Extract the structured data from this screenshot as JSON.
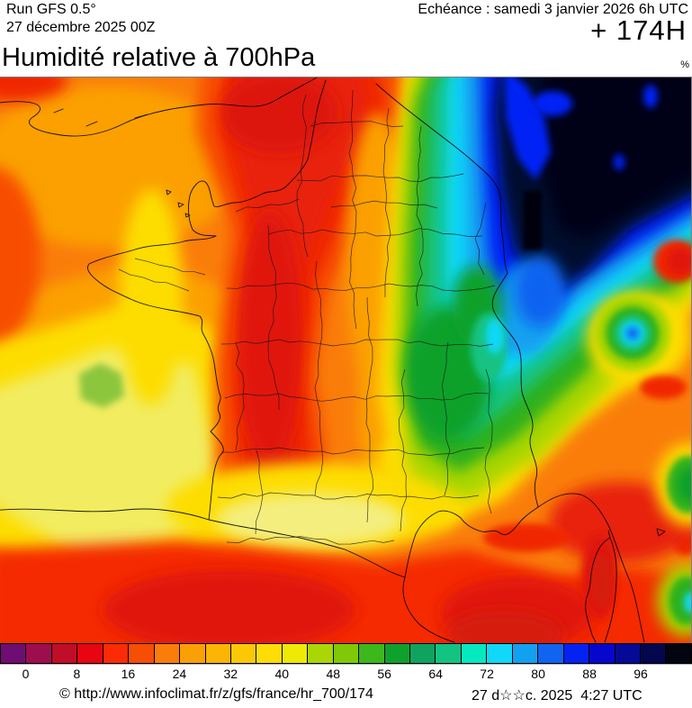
{
  "header": {
    "run_model": "Run GFS 0.5°",
    "run_date": "27 décembre 2025 00Z",
    "valid_label": "Echéance : samedi 3 janvier 2026 6h UTC",
    "forecast_offset": "+ 174H"
  },
  "title": {
    "text": "Humidité relative à 700hPa",
    "unit": "%"
  },
  "scale": {
    "tick_labels": [
      "0",
      "8",
      "16",
      "24",
      "32",
      "40",
      "48",
      "56",
      "64",
      "72",
      "80",
      "88",
      "96"
    ],
    "colors": [
      "#6E0D72",
      "#9C0E4E",
      "#C00D28",
      "#E60511",
      "#FB2C05",
      "#F74E06",
      "#FA7D0A",
      "#FBA004",
      "#FCB405",
      "#FCC805",
      "#FDDD05",
      "#EFE906",
      "#AAD606",
      "#7FC908",
      "#3DB81C",
      "#0EA12C",
      "#0FA35F",
      "#12C382",
      "#06E8C0",
      "#10D8F8",
      "#14A0F0",
      "#1064F0",
      "#0522F5",
      "#0508CC",
      "#050A96",
      "#03074E",
      "#02040F"
    ]
  },
  "footer": {
    "copyright": "© http://www.infoclimat.fr/z/gfs/france/hr_700/174",
    "datetime": "27 d☆☆c. 2025  4:27 UTC"
  },
  "chart_data": {
    "type": "heatmap",
    "title": "Humidité relative à 700hPa",
    "unit": "%",
    "legend_min": 0,
    "legend_max": 100,
    "legend_step_per_band": 4,
    "legend_tick_values": [
      0,
      8,
      16,
      24,
      32,
      40,
      48,
      56,
      64,
      72,
      80,
      88,
      96
    ],
    "legend_position": "bottom",
    "palette": [
      "#6E0D72",
      "#9C0E4E",
      "#C00D28",
      "#E60511",
      "#FB2C05",
      "#F74E06",
      "#FA7D0A",
      "#FBA004",
      "#FCB405",
      "#FCC805",
      "#FDDD05",
      "#EFE906",
      "#AAD606",
      "#7FC908",
      "#3DB81C",
      "#0EA12C",
      "#0FA35F",
      "#12C382",
      "#06E8C0",
      "#10D8F8",
      "#14A0F0",
      "#1064F0",
      "#0522F5",
      "#0508CC",
      "#050A96",
      "#03074E",
      "#02040F"
    ],
    "regions_summary": [
      {
        "area": "western and central France",
        "value_pct": "8-24 (very dry, red)"
      },
      {
        "area": "north-east corner (Germany/Benelux)",
        "value_pct": "96-100 (saturated, dark navy)"
      },
      {
        "area": "Alsace-Lorraine / Jura band",
        "value_pct": "56-88 (green-cyan-blue transition)"
      },
      {
        "area": "Atlantic near-shore and Aquitaine",
        "value_pct": "32-44 (yellow)"
      },
      {
        "area": "Brittany west tip blob",
        "value_pct": "48-52 (green)"
      },
      {
        "area": "Po valley spot at right edge",
        "value_pct": "72-80 (cyan-blue bullseye)"
      },
      {
        "area": "Mediterranean, Corsica and south",
        "value_pct": "8-28 (red-orange)"
      }
    ]
  }
}
